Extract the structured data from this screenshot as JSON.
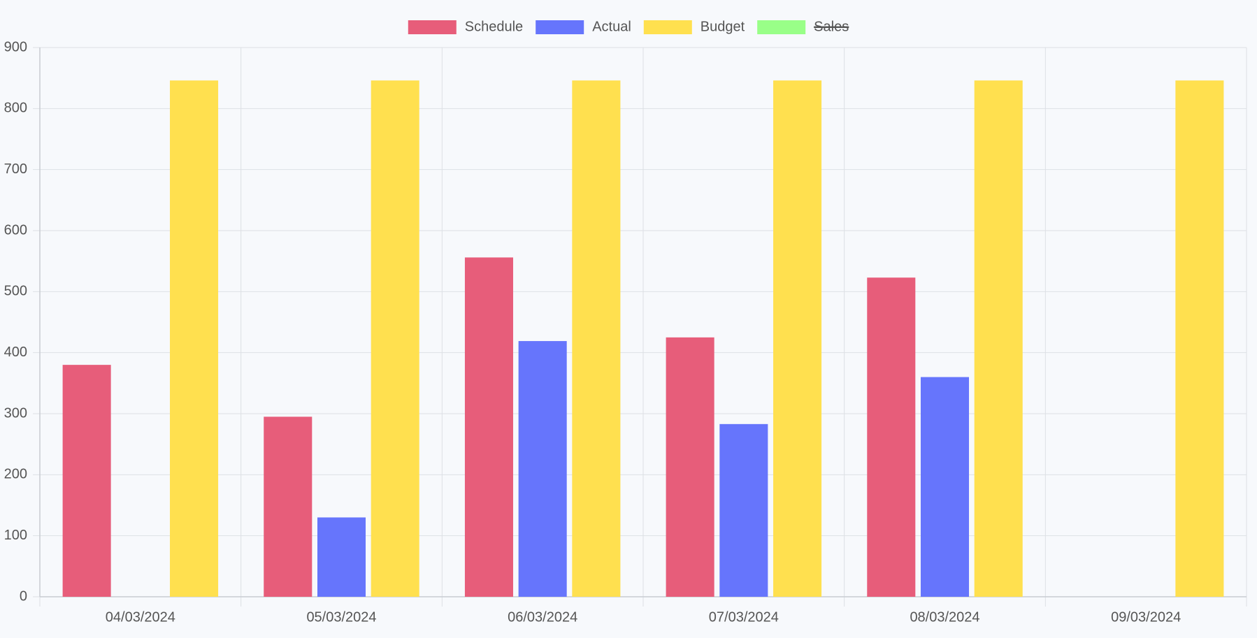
{
  "chart_data": {
    "type": "bar",
    "categories": [
      "04/03/2024",
      "05/03/2024",
      "06/03/2024",
      "07/03/2024",
      "08/03/2024",
      "09/03/2024"
    ],
    "series": [
      {
        "name": "Schedule",
        "color": "#e75d7a",
        "values": [
          380,
          295,
          556,
          425,
          523,
          null
        ]
      },
      {
        "name": "Actual",
        "color": "#6675fc",
        "values": [
          null,
          130,
          419,
          283,
          360,
          null
        ]
      },
      {
        "name": "Budget",
        "color": "#ffe04f",
        "values": [
          846,
          846,
          846,
          846,
          846,
          846
        ]
      },
      {
        "name": "Sales",
        "color": "#99ff88",
        "values": [
          null,
          null,
          null,
          null,
          null,
          null
        ],
        "hidden": true
      }
    ],
    "ylim": [
      0,
      900
    ],
    "yticks": [
      0,
      100,
      200,
      300,
      400,
      500,
      600,
      700,
      800,
      900
    ],
    "grid": true,
    "legend": "top"
  }
}
